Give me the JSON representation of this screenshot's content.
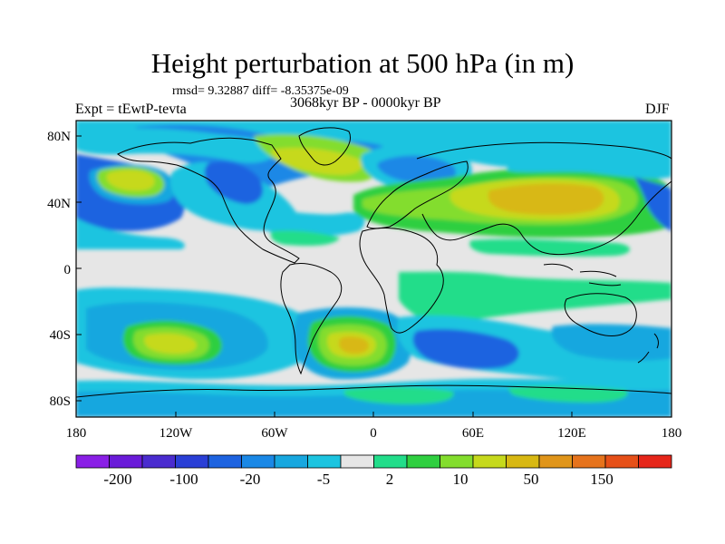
{
  "title": "Height perturbation at 500 hPa (in m)",
  "stats": "rmsd= 9.32887 diff= -8.35375e-09",
  "experiment": "Expt = tEwtP-tevta",
  "period": "3068kyr BP - 0000kyr BP",
  "season": "DJF",
  "lat_ticks": [
    "80N",
    "40N",
    "0",
    "40S",
    "80S"
  ],
  "lon_ticks": [
    "180",
    "120W",
    "60W",
    "0",
    "60E",
    "120E",
    "180"
  ],
  "colorbar": {
    "labels": [
      "-200",
      "-100",
      "-20",
      "-5",
      "2",
      "10",
      "50",
      "150"
    ],
    "colors": [
      "#8a1fe6",
      "#6a1bd9",
      "#4a2ccf",
      "#2a3fd6",
      "#1d63e0",
      "#1a88e6",
      "#17a7df",
      "#1cc4e0",
      "#e6e6e6",
      "#22dd8a",
      "#2fcf40",
      "#83dd2d",
      "#c6d91c",
      "#d8b812",
      "#e0951a",
      "#e6731c",
      "#e65018",
      "#e6261a"
    ]
  },
  "colors": {
    "land_outline": "#000000",
    "background": "#ffffff"
  }
}
